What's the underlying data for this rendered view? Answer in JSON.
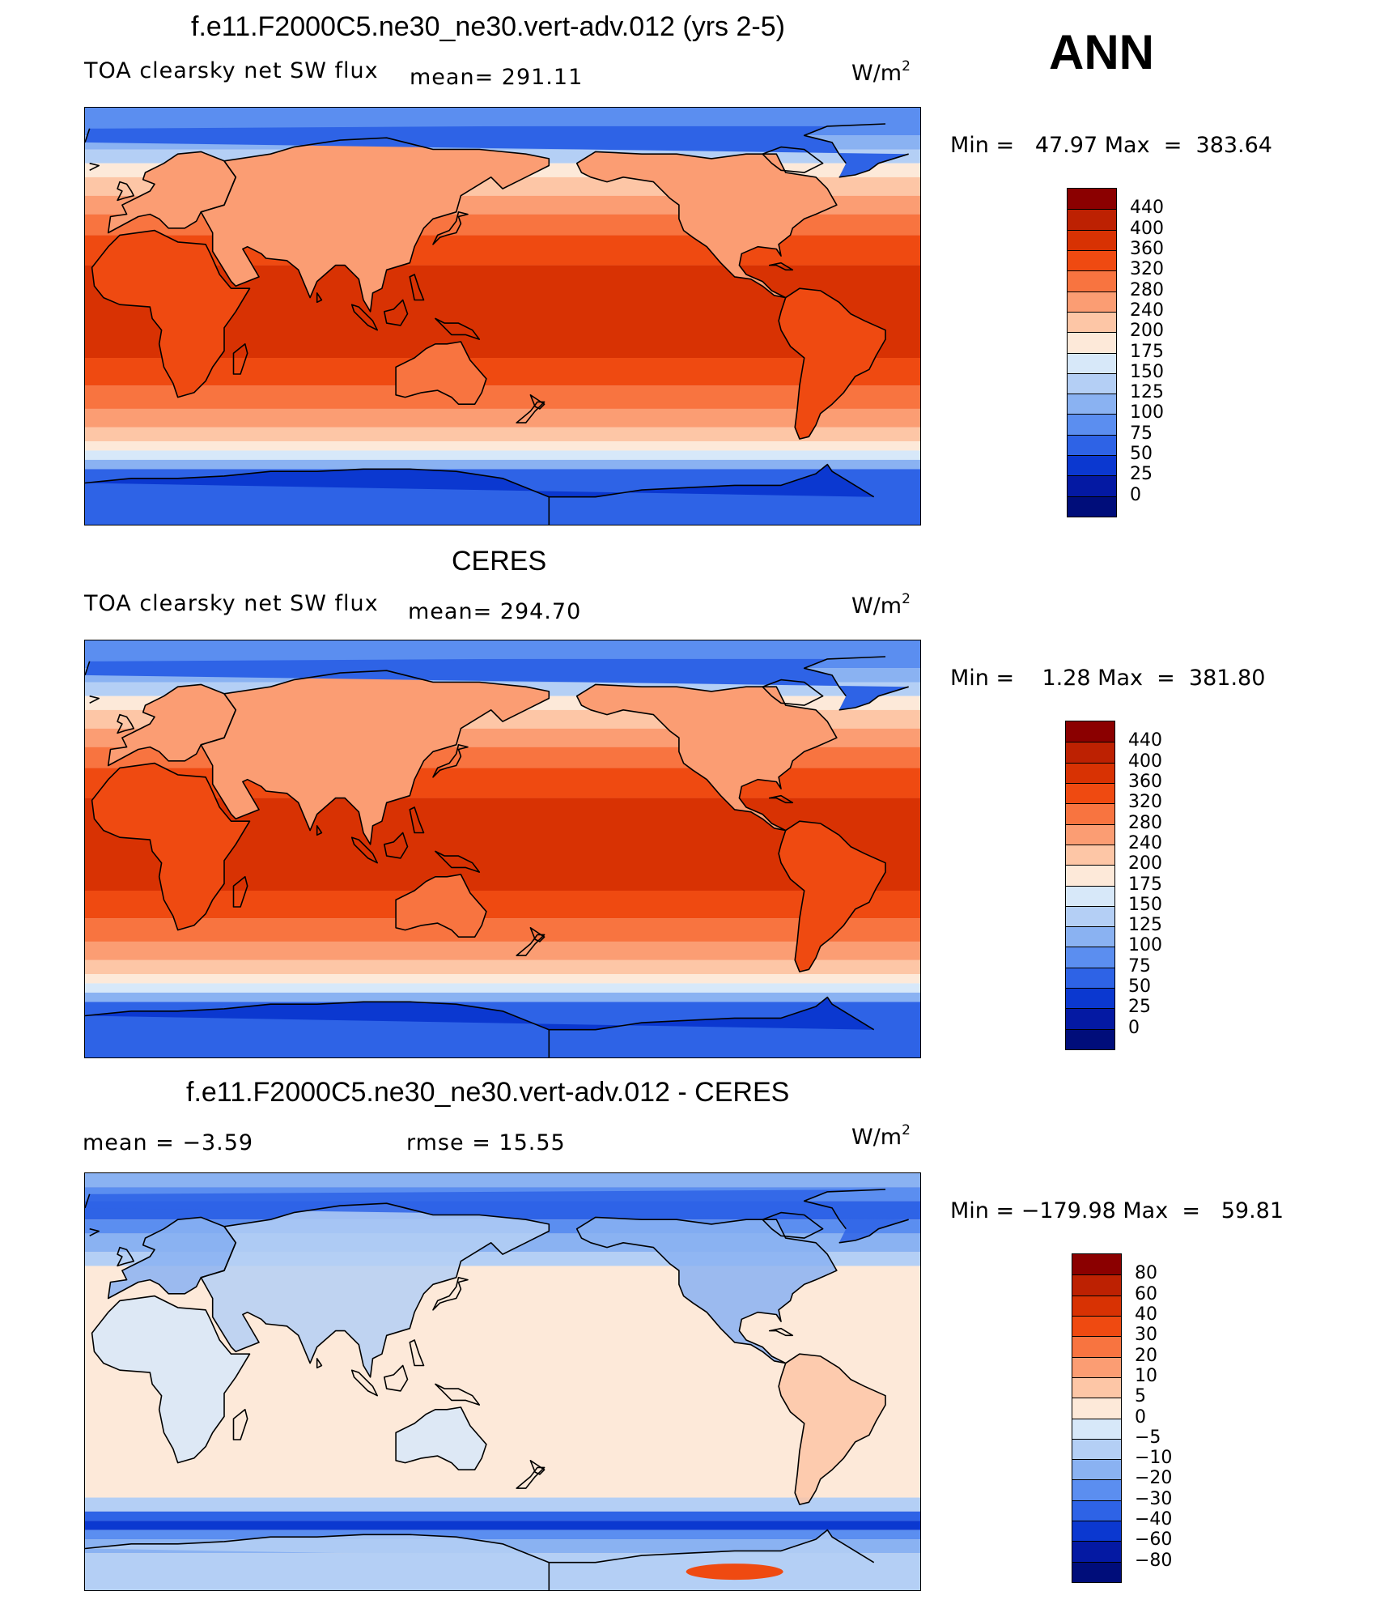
{
  "season": "ANN",
  "panels": [
    {
      "id": "model",
      "title": "f.e11.F2000C5.ne30_ne30.vert-adv.012 (yrs 2-5)",
      "subtitle_left": "TOA clearsky net SW flux",
      "stat_text": "mean=  291.11",
      "stat_text2": "",
      "unit_base": "W/m",
      "unit_exp": "2",
      "minmax": "Min =   47.97 Max  =  383.64",
      "colorbar_labels": [
        "440",
        "400",
        "360",
        "320",
        "280",
        "240",
        "200",
        "175",
        "150",
        "125",
        "100",
        "75",
        "50",
        "25",
        "0"
      ],
      "colorbar_colors": [
        "#8b0000",
        "#bd2102",
        "#d83203",
        "#ef4a11",
        "#f87440",
        "#fb9d73",
        "#fdc6a6",
        "#fde9d9",
        "#d7e8f9",
        "#b4cff5",
        "#8ab2f2",
        "#5b8ef0",
        "#2e63e6",
        "#0b38d0",
        "#0419a3",
        "#000d7a"
      ],
      "field": {
        "type": "absolute",
        "arctic": 60,
        "antarctic": 40,
        "peak": 345,
        "min": 47.97,
        "max": 383.64,
        "mean": 291.11
      }
    },
    {
      "id": "obs",
      "title": "CERES",
      "subtitle_left": "TOA clearsky net SW flux",
      "stat_text": "mean=  294.70",
      "stat_text2": "",
      "unit_base": "W/m",
      "unit_exp": "2",
      "minmax": "Min =    1.28 Max  =  381.80",
      "colorbar_labels": [
        "440",
        "400",
        "360",
        "320",
        "280",
        "240",
        "200",
        "175",
        "150",
        "125",
        "100",
        "75",
        "50",
        "25",
        "0"
      ],
      "colorbar_colors": [
        "#8b0000",
        "#bd2102",
        "#d83203",
        "#ef4a11",
        "#f87440",
        "#fb9d73",
        "#fdc6a6",
        "#fde9d9",
        "#d7e8f9",
        "#b4cff5",
        "#8ab2f2",
        "#5b8ef0",
        "#2e63e6",
        "#0b38d0",
        "#0419a3",
        "#000d7a"
      ],
      "field": {
        "type": "absolute",
        "arctic": 80,
        "antarctic": 55,
        "peak": 345,
        "min": 1.28,
        "max": 381.8,
        "mean": 294.7
      }
    },
    {
      "id": "diff",
      "title": "f.e11.F2000C5.ne30_ne30.vert-adv.012 - CERES",
      "subtitle_left": "mean =    −3.59",
      "stat_text": "rmse =    15.55",
      "stat_text2": "",
      "unit_base": "W/m",
      "unit_exp": "2",
      "minmax": "Min = −179.98 Max  =   59.81",
      "colorbar_labels": [
        "80",
        "60",
        "40",
        "30",
        "20",
        "10",
        "5",
        "0",
        "−5",
        "−10",
        "−20",
        "−30",
        "−40",
        "−60",
        "−80"
      ],
      "colorbar_colors": [
        "#8b0000",
        "#bd2102",
        "#d83203",
        "#ef4a11",
        "#f87440",
        "#fb9d73",
        "#fdc6a6",
        "#fde9d9",
        "#d7e8f9",
        "#b4cff5",
        "#8ab2f2",
        "#5b8ef0",
        "#2e63e6",
        "#0b38d0",
        "#0419a3",
        "#000d7a"
      ],
      "field": {
        "type": "difference",
        "min": -179.98,
        "max": 59.81,
        "mean": -3.59,
        "rmse": 15.55
      }
    }
  ]
}
